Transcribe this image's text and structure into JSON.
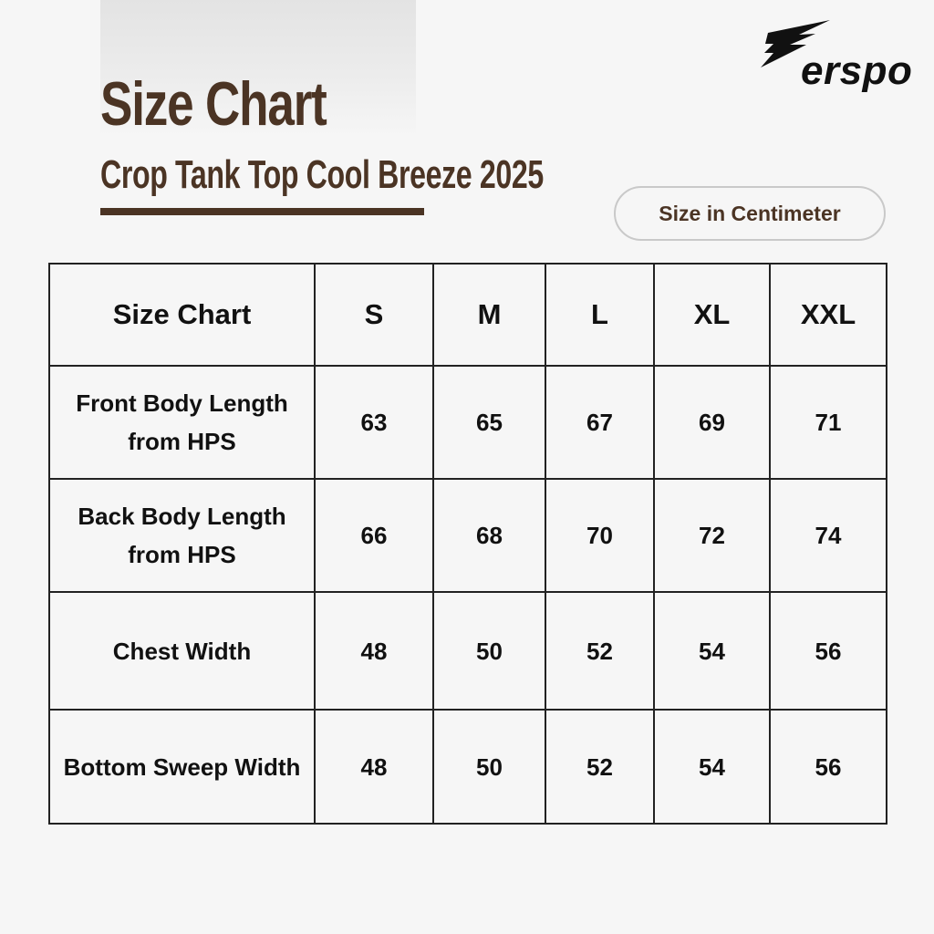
{
  "header": {
    "title": "Size Chart",
    "subtitle": "Crop Tank Top Cool Breeze 2025",
    "unit_label": "Size in Centimeter"
  },
  "brand": {
    "logo_text": "erspo",
    "logo_icon": "stylized-E-bolt-icon"
  },
  "table": {
    "corner_header": "Size Chart",
    "size_headers": [
      "S",
      "M",
      "L",
      "XL",
      "XXL"
    ],
    "rows": [
      {
        "label": "Front Body Length from HPS",
        "values": [
          "63",
          "65",
          "67",
          "69",
          "71"
        ]
      },
      {
        "label": "Back Body Length from HPS",
        "values": [
          "66",
          "68",
          "70",
          "72",
          "74"
        ]
      },
      {
        "label": "Chest Width",
        "values": [
          "48",
          "50",
          "52",
          "54",
          "56"
        ]
      },
      {
        "label": "Bottom Sweep Width",
        "values": [
          "48",
          "50",
          "52",
          "54",
          "56"
        ]
      }
    ]
  },
  "colors": {
    "brand_brown": "#4b3424",
    "background": "#f6f6f6",
    "text_dark": "#111111",
    "table_border": "#222222",
    "pill_border": "#c9c9c9"
  }
}
